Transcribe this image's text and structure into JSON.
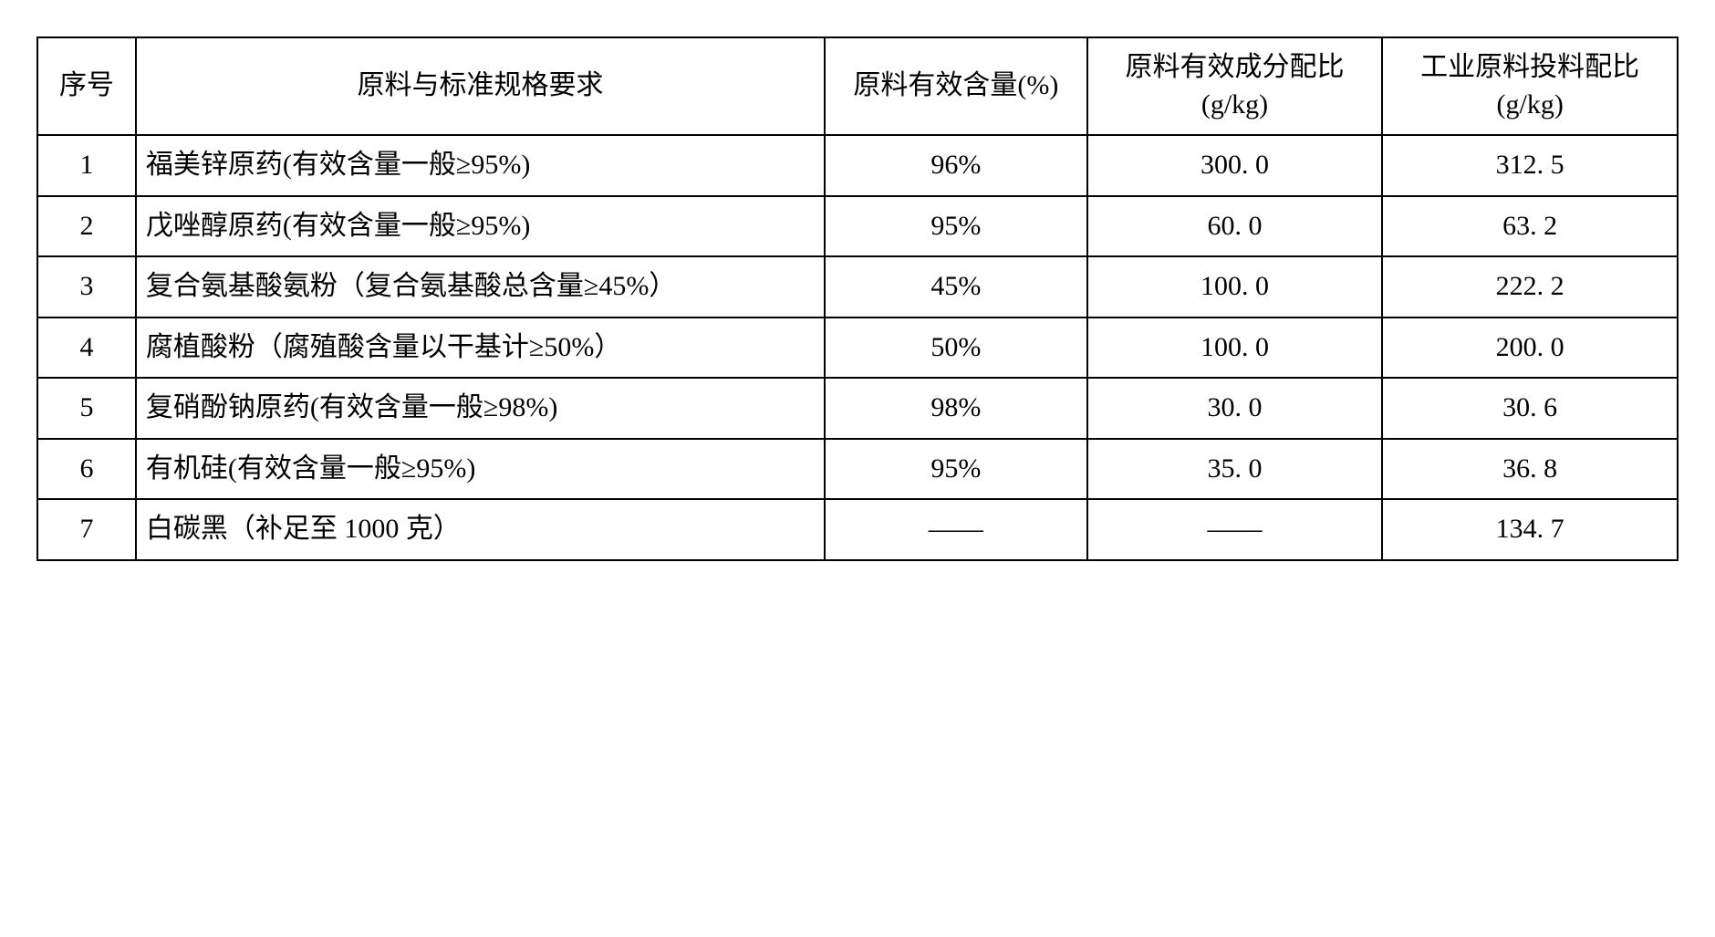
{
  "headers": {
    "idx": "序号",
    "desc": "原料与标准规格要求",
    "eff": "原料有效含量(%)",
    "ratio1": "原料有效成分配比 (g/kg)",
    "ratio2": "工业原料投料配比 (g/kg)"
  },
  "rows": [
    {
      "idx": "1",
      "desc": "福美锌原药(有效含量一般≥95%)",
      "eff": "96%",
      "r1": "300. 0",
      "r2": "312. 5"
    },
    {
      "idx": "2",
      "desc": "戊唑醇原药(有效含量一般≥95%)",
      "eff": "95%",
      "r1": "60. 0",
      "r2": "63. 2"
    },
    {
      "idx": "3",
      "desc": "复合氨基酸氨粉（复合氨基酸总含量≥45%）",
      "eff": "45%",
      "r1": "100. 0",
      "r2": "222. 2"
    },
    {
      "idx": "4",
      "desc": "腐植酸粉（腐殖酸含量以干基计≥50%）",
      "eff": "50%",
      "r1": "100. 0",
      "r2": "200. 0"
    },
    {
      "idx": "5",
      "desc": "复硝酚钠原药(有效含量一般≥98%)",
      "eff": "98%",
      "r1": "30. 0",
      "r2": "30. 6"
    },
    {
      "idx": "6",
      "desc": "有机硅(有效含量一般≥95%)",
      "eff": "95%",
      "r1": "35. 0",
      "r2": "36. 8"
    },
    {
      "idx": "7",
      "desc": "白碳黑（补足至 1000 克）",
      "eff": "——",
      "r1": "——",
      "r2": "134. 7"
    }
  ],
  "style": {
    "font_family": "SimSun",
    "font_size_pt": 22,
    "border_color": "#000000",
    "text_color": "#000000",
    "background_color": "#ffffff",
    "column_widths_pct": [
      6,
      42,
      16,
      18,
      18
    ],
    "header_align": "center",
    "idx_align": "center",
    "desc_align": "left",
    "value_align": "center"
  }
}
